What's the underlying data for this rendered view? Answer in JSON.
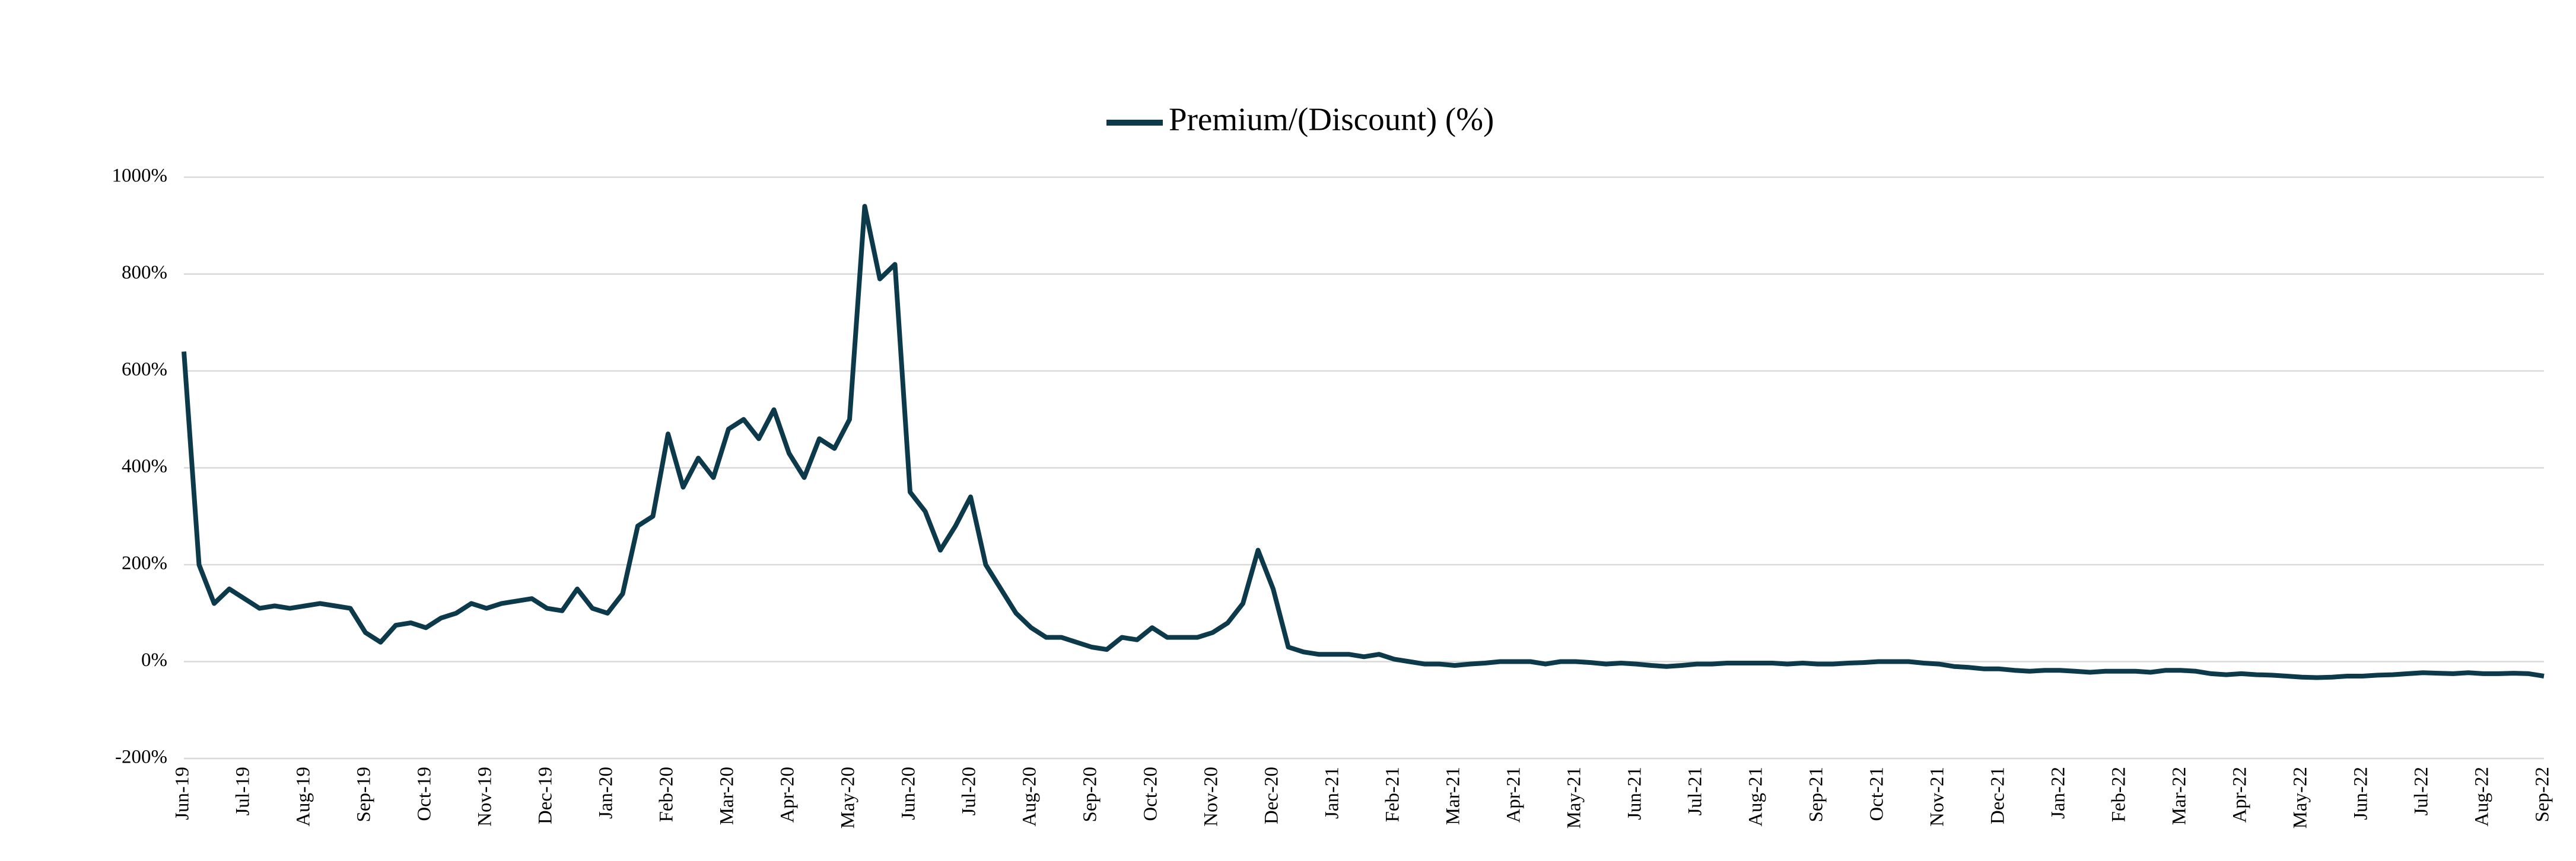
{
  "chart_data": {
    "type": "line",
    "legend": "top",
    "grid": true,
    "categories": [
      "Jun-19",
      null,
      null,
      null,
      "Jul-19",
      null,
      null,
      null,
      "Aug-19",
      null,
      null,
      null,
      "Sep-19",
      null,
      null,
      null,
      "Oct-19",
      null,
      null,
      null,
      "Nov-19",
      null,
      null,
      null,
      "Dec-19",
      null,
      null,
      null,
      "Jan-20",
      null,
      null,
      null,
      "Feb-20",
      null,
      null,
      null,
      "Mar-20",
      null,
      null,
      null,
      "Apr-20",
      null,
      null,
      null,
      "May-20",
      null,
      null,
      null,
      "Jun-20",
      null,
      null,
      null,
      "Jul-20",
      null,
      null,
      null,
      "Aug-20",
      null,
      null,
      null,
      "Sep-20",
      null,
      null,
      null,
      "Oct-20",
      null,
      null,
      null,
      "Nov-20",
      null,
      null,
      null,
      "Dec-20",
      null,
      null,
      null,
      "Jan-21",
      null,
      null,
      null,
      "Feb-21",
      null,
      null,
      null,
      "Mar-21",
      null,
      null,
      null,
      "Apr-21",
      null,
      null,
      null,
      "May-21",
      null,
      null,
      null,
      "Jun-21",
      null,
      null,
      null,
      "Jul-21",
      null,
      null,
      null,
      "Aug-21",
      null,
      null,
      null,
      "Sep-21",
      null,
      null,
      null,
      "Oct-21",
      null,
      null,
      null,
      "Nov-21",
      null,
      null,
      null,
      "Dec-21",
      null,
      null,
      null,
      "Jan-22",
      null,
      null,
      null,
      "Feb-22",
      null,
      null,
      null,
      "Mar-22",
      null,
      null,
      null,
      "Apr-22",
      null,
      null,
      null,
      "May-22",
      null,
      null,
      null,
      "Jun-22",
      null,
      null,
      null,
      "Jul-22",
      null,
      null,
      null,
      "Aug-22",
      null,
      null,
      null,
      "Sep-22"
    ],
    "series": [
      {
        "name": "Premium/(Discount) (%)",
        "color": "#0d3a4a",
        "values": [
          640,
          200,
          120,
          150,
          130,
          110,
          115,
          110,
          115,
          120,
          115,
          110,
          60,
          40,
          75,
          80,
          70,
          90,
          100,
          120,
          110,
          120,
          125,
          130,
          110,
          105,
          150,
          110,
          100,
          140,
          280,
          300,
          470,
          360,
          420,
          380,
          480,
          500,
          460,
          520,
          430,
          380,
          460,
          440,
          500,
          940,
          790,
          820,
          350,
          310,
          230,
          280,
          340,
          200,
          150,
          100,
          70,
          50,
          50,
          40,
          30,
          25,
          50,
          45,
          70,
          50,
          50,
          50,
          60,
          80,
          120,
          230,
          150,
          30,
          20,
          15,
          15,
          15,
          10,
          15,
          5,
          0,
          -5,
          -5,
          -8,
          -5,
          -3,
          0,
          0,
          0,
          -5,
          0,
          0,
          -2,
          -5,
          -3,
          -5,
          -8,
          -10,
          -8,
          -5,
          -5,
          -3,
          -3,
          -3,
          -3,
          -5,
          -3,
          -5,
          -5,
          -3,
          -2,
          0,
          0,
          0,
          -3,
          -5,
          -10,
          -12,
          -15,
          -15,
          -18,
          -20,
          -18,
          -18,
          -20,
          -22,
          -20,
          -20,
          -20,
          -22,
          -18,
          -18,
          -20,
          -25,
          -27,
          -25,
          -27,
          -28,
          -30,
          -32,
          -33,
          -32,
          -30,
          -30,
          -28,
          -27,
          -25,
          -23,
          -24,
          -25,
          -23,
          -25,
          -25,
          -24,
          -25,
          -30
        ]
      }
    ],
    "ylim": [
      -200,
      1000
    ],
    "yticks": [
      {
        "value": -200,
        "label": "-200%"
      },
      {
        "value": 0,
        "label": "0%"
      },
      {
        "value": 200,
        "label": "200%"
      },
      {
        "value": 400,
        "label": "400%"
      },
      {
        "value": 600,
        "label": "600%"
      },
      {
        "value": 800,
        "label": "800%"
      },
      {
        "value": 1000,
        "label": "1000%"
      }
    ]
  }
}
